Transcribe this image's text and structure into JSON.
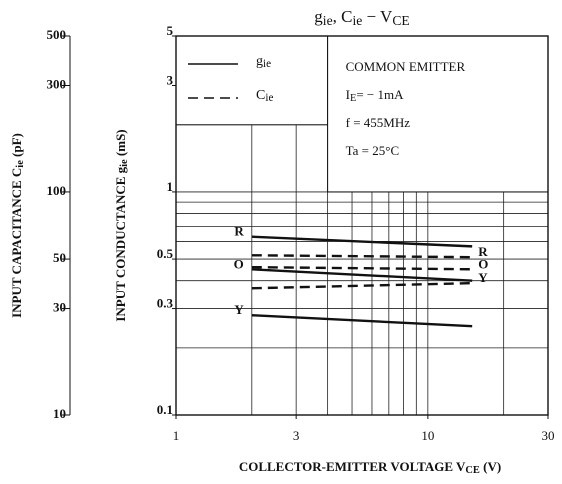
{
  "chart_data": {
    "type": "line",
    "title": [
      [
        "g",
        false
      ],
      [
        "ie",
        true
      ],
      [
        ", C",
        false
      ],
      [
        "ie",
        true
      ],
      [
        " − V",
        false
      ],
      [
        "CE",
        true
      ]
    ],
    "xlabel": [
      [
        "COLLECTOR-EMITTER  VOLTAGE  V",
        false
      ],
      [
        "CE",
        true
      ],
      [
        " (V)",
        false
      ]
    ],
    "ylabel": [
      [
        "INPUT CONDUCTANCE  g",
        false
      ],
      [
        "ie",
        true
      ],
      [
        "  (mS)",
        false
      ]
    ],
    "y2label": [
      [
        "INPUT CAPACITANCE  C",
        false
      ],
      [
        "ie",
        true
      ],
      [
        "  (pF)",
        false
      ]
    ],
    "log_x": true,
    "log_y": true,
    "xlim": [
      1,
      30
    ],
    "xticks": [
      1,
      3,
      10,
      30
    ],
    "xgrid": [
      2,
      3,
      4,
      5,
      6,
      7,
      8,
      9,
      10,
      20
    ],
    "ylim": [
      0.1,
      5
    ],
    "yticks": [
      0.1,
      0.3,
      0.5,
      1,
      3,
      5
    ],
    "ygrid": [
      0.2,
      0.3,
      0.4,
      0.5,
      0.6,
      0.7,
      0.8,
      0.9,
      1,
      2
    ],
    "y2lim": [
      10,
      500
    ],
    "y2ticks": [
      10,
      30,
      50,
      100,
      300,
      500
    ],
    "legend": [
      {
        "label": [
          [
            "g",
            false
          ],
          [
            "ie",
            true
          ]
        ],
        "dash": "none"
      },
      {
        "label": [
          [
            "C",
            false
          ],
          [
            "ie",
            true
          ]
        ],
        "dash": "10,6"
      }
    ],
    "annotations": [
      [
        [
          "COMMON EMITTER",
          false
        ]
      ],
      [
        [
          "I",
          false
        ],
        [
          "E",
          true
        ],
        [
          "= − 1mA",
          false
        ]
      ],
      [
        [
          "f = 455MHz",
          false
        ]
      ],
      [
        [
          "Ta = 25°C",
          false
        ]
      ]
    ],
    "x": [
      2,
      15
    ],
    "series": [
      {
        "name": "R",
        "legend": 0,
        "color": "#111",
        "values": [
          0.63,
          0.57
        ]
      },
      {
        "name": "O",
        "legend": 0,
        "color": "#111",
        "values": [
          0.45,
          0.4
        ]
      },
      {
        "name": "Y",
        "legend": 0,
        "color": "#111",
        "values": [
          0.28,
          0.25
        ]
      },
      {
        "name": "R",
        "legend": 1,
        "axis": "y2",
        "color": "#111",
        "values": [
          52,
          51
        ]
      },
      {
        "name": "O",
        "legend": 1,
        "axis": "y2",
        "color": "#111",
        "values": [
          46,
          45
        ]
      },
      {
        "name": "Y",
        "legend": 1,
        "axis": "y2",
        "color": "#111",
        "values": [
          37,
          39
        ]
      }
    ]
  }
}
